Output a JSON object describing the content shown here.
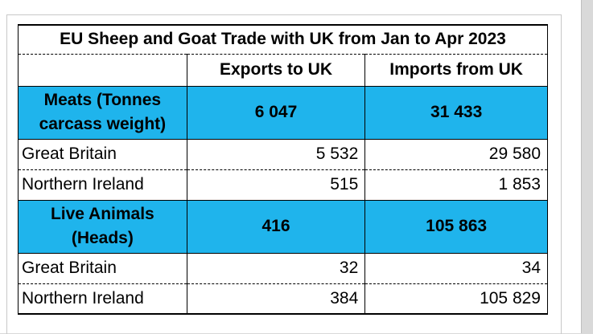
{
  "table": {
    "title": "EU Sheep and Goat Trade with UK from Jan to Apr 2023",
    "headers": [
      "",
      "Exports to UK",
      "Imports from UK"
    ],
    "sections": [
      {
        "category": "Meats (Tonnes carcass weight)",
        "exports_total": "6 047",
        "imports_total": "31 433",
        "rows": [
          {
            "label": "Great Britain",
            "exports": "5 532",
            "imports": "29 580"
          },
          {
            "label": "Northern Ireland",
            "exports": "515",
            "imports": "1 853"
          }
        ]
      },
      {
        "category": "Live Animals (Heads)",
        "exports_total": "416",
        "imports_total": "105 863",
        "rows": [
          {
            "label": "Great Britain",
            "exports": "32",
            "imports": "34"
          },
          {
            "label": "Northern Ireland",
            "exports": "384",
            "imports": "105 829"
          }
        ]
      }
    ]
  },
  "colors": {
    "category_fill": "#1fb4ec",
    "category_text": "#ffffff",
    "background": "#d9d9d9"
  }
}
